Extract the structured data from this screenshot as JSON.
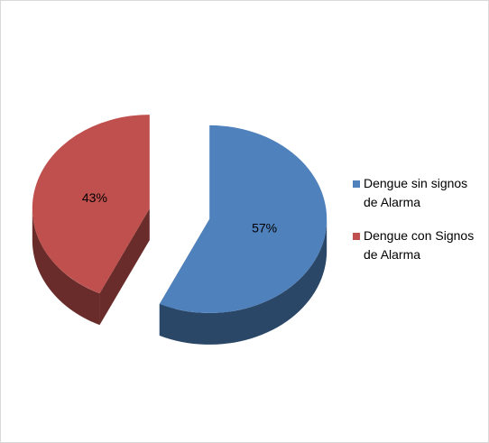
{
  "chart_data": {
    "type": "pie",
    "categories": [
      "Dengue sin signos de Alarma",
      "Dengue con Signos de Alarma"
    ],
    "values": [
      57,
      43
    ],
    "value_labels": [
      "57%",
      "43%"
    ],
    "colors": [
      "#4f81bd",
      "#c0504d"
    ]
  }
}
